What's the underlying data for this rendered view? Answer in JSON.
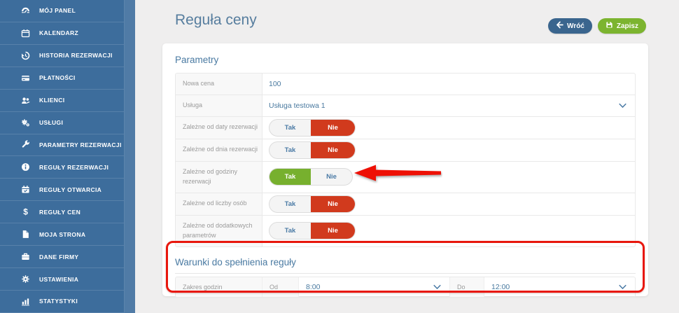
{
  "sidebar": {
    "items": [
      {
        "id": "moj-panel",
        "label": "MÓJ PANEL",
        "icon": "dashboard-icon"
      },
      {
        "id": "kalendarz",
        "label": "KALENDARZ",
        "icon": "calendar-icon"
      },
      {
        "id": "historia-rezerwacji",
        "label": "HISTORIA REZERWACJI",
        "icon": "history-icon"
      },
      {
        "id": "platnosci",
        "label": "PŁATNOŚCI",
        "icon": "credit-card-icon"
      },
      {
        "id": "klienci",
        "label": "KLIENCI",
        "icon": "users-icon"
      },
      {
        "id": "uslugi",
        "label": "USŁUGI",
        "icon": "services-icon"
      },
      {
        "id": "parametry-rezerwacji",
        "label": "PARAMETRY REZERWACJI",
        "icon": "wrench-icon"
      },
      {
        "id": "reguly-rezerwacji",
        "label": "REGUŁY REZERWACJI",
        "icon": "info-icon"
      },
      {
        "id": "reguly-otwarcia",
        "label": "REGUŁY OTWARCIA",
        "icon": "calendar-check-icon"
      },
      {
        "id": "reguly-cen",
        "label": "REGUŁY CEN",
        "icon": "dollar-icon"
      },
      {
        "id": "moja-strona",
        "label": "MOJA STRONA",
        "icon": "page-icon"
      },
      {
        "id": "dane-firmy",
        "label": "DANE FIRMY",
        "icon": "briefcase-icon"
      },
      {
        "id": "ustawienia",
        "label": "USTAWIENIA",
        "icon": "gear-icon"
      },
      {
        "id": "statystyki",
        "label": "STATYSTYKI",
        "icon": "chart-icon"
      }
    ]
  },
  "header": {
    "title": "Reguła ceny",
    "back_label": "Wróć",
    "save_label": "Zapisz"
  },
  "parameters": {
    "section_title": "Parametry",
    "toggle": {
      "yes_label": "Tak",
      "no_label": "Nie"
    },
    "rows": [
      {
        "type": "text",
        "label": "Nowa cena",
        "value": "100"
      },
      {
        "type": "select",
        "label": "Usługa",
        "value": "Usługa testowa 1"
      },
      {
        "type": "toggle",
        "label": "Zależne od daty rezerwacji",
        "selected": "no"
      },
      {
        "type": "toggle",
        "label": "Zależne od dnia rezerwacji",
        "selected": "no"
      },
      {
        "type": "toggle",
        "label": "Zależne od godziny rezerwacji",
        "selected": "yes"
      },
      {
        "type": "toggle",
        "label": "Zależne od liczby osób",
        "selected": "no"
      },
      {
        "type": "toggle",
        "label": "Zależne od dodatkowych parametrów",
        "selected": "no"
      }
    ]
  },
  "conditions": {
    "section_title": "Warunki do spełnienia reguły",
    "row": {
      "label": "Zakres godzin",
      "from_label": "Od",
      "from_value": "8:00",
      "to_label": "Do",
      "to_value": "12:00"
    }
  },
  "colors": {
    "sidebar_bg": "#3d6d9c",
    "accent_blue": "#49799f",
    "toggle_red": "#d13a1d",
    "toggle_green": "#77b02e",
    "button_back": "#3a658e",
    "button_save": "#7cb42f",
    "annotation_red": "#e8170d"
  }
}
